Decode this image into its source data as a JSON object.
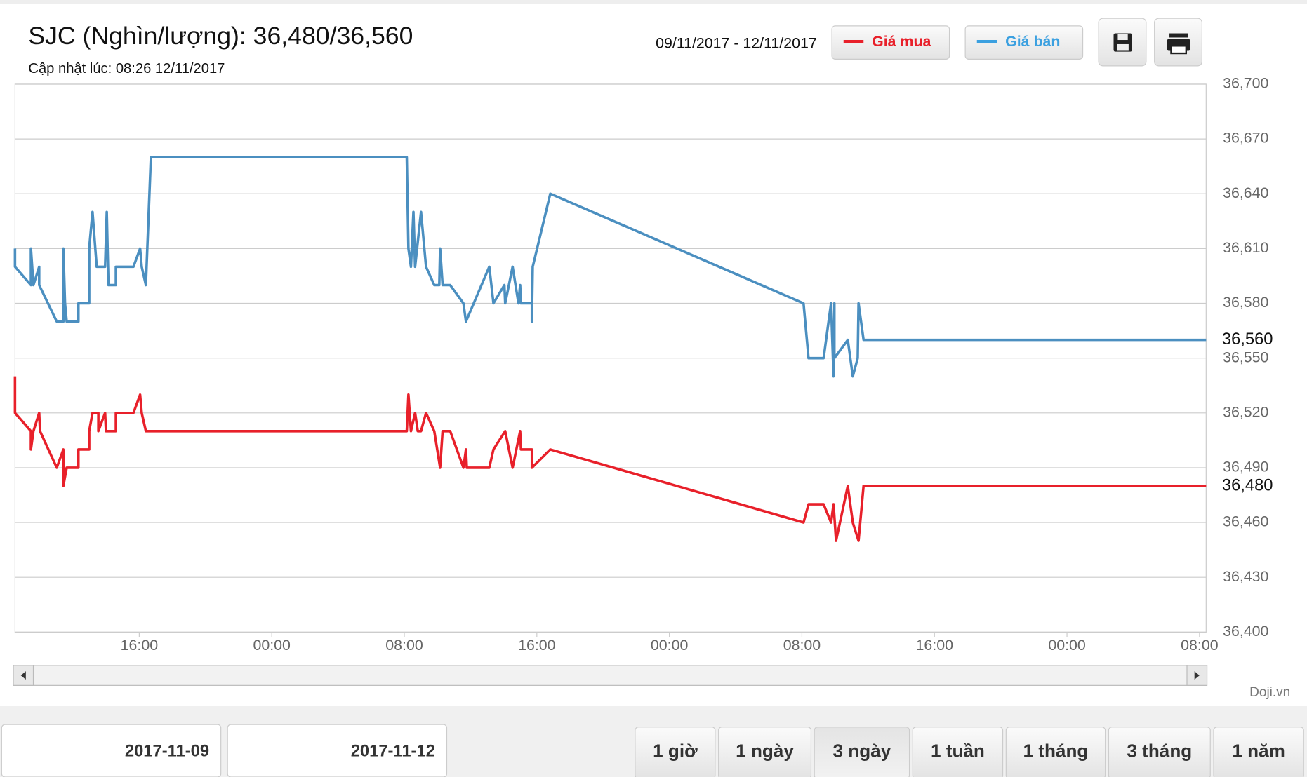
{
  "chart_data": {
    "type": "line",
    "title": "SJC (Nghìn/lượng): 36,480/36,560",
    "subtitle": "Cập nhật lúc: 08:26 12/11/2017",
    "date_range": "09/11/2017 - 12/11/2017",
    "watermark": "Doji.vn",
    "legend_position": "top-right",
    "grid": true,
    "xlim": [
      8.5,
      80.4
    ],
    "xticks": [
      {
        "value": 16,
        "label": "16:00"
      },
      {
        "value": 24,
        "label": "00:00"
      },
      {
        "value": 32,
        "label": "08:00"
      },
      {
        "value": 40,
        "label": "16:00"
      },
      {
        "value": 48,
        "label": "00:00"
      },
      {
        "value": 56,
        "label": "08:00"
      },
      {
        "value": 64,
        "label": "16:00"
      },
      {
        "value": 72,
        "label": "00:00"
      },
      {
        "value": 80,
        "label": "08:00"
      }
    ],
    "ylim": [
      36400,
      36700
    ],
    "yticks": [
      {
        "value": 36400,
        "label": "36,400"
      },
      {
        "value": 36430,
        "label": "36,430"
      },
      {
        "value": 36460,
        "label": "36,460"
      },
      {
        "value": 36490,
        "label": "36,490"
      },
      {
        "value": 36520,
        "label": "36,520"
      },
      {
        "value": 36550,
        "label": "36,550"
      },
      {
        "value": 36580,
        "label": "36,580"
      },
      {
        "value": 36610,
        "label": "36,610"
      },
      {
        "value": 36640,
        "label": "36,640"
      },
      {
        "value": 36670,
        "label": "36,670"
      },
      {
        "value": 36700,
        "label": "36,700"
      }
    ],
    "series": [
      {
        "name": "Giá mua",
        "color": "#e8202a",
        "current": {
          "value": 36480,
          "label": "36,480"
        },
        "x": [
          8.5,
          8.5,
          9.46,
          9.46,
          9.61,
          9.96,
          10.01,
          11.02,
          11.42,
          11.42,
          11.62,
          12.33,
          12.33,
          12.98,
          12.98,
          13.18,
          13.53,
          13.53,
          13.94,
          13.99,
          14.59,
          14.59,
          15.65,
          16.05,
          16.15,
          16.4,
          32.15,
          32.25,
          32.4,
          32.65,
          32.81,
          33.01,
          33.31,
          33.81,
          34.16,
          34.31,
          34.77,
          35.57,
          35.72,
          35.77,
          37.13,
          37.38,
          38.09,
          38.54,
          38.99,
          39.04,
          39.7,
          39.7,
          40.81,
          56.1,
          56.4,
          57.31,
          57.76,
          57.91,
          58.06,
          58.77,
          59.07,
          59.42,
          59.72,
          80.4
        ],
        "values": [
          36540,
          36520,
          36510,
          36500,
          36510,
          36520,
          36510,
          36490,
          36500,
          36480,
          36490,
          36490,
          36500,
          36500,
          36510,
          36520,
          36520,
          36510,
          36520,
          36510,
          36510,
          36520,
          36520,
          36530,
          36520,
          36510,
          36510,
          36530,
          36510,
          36520,
          36510,
          36510,
          36520,
          36510,
          36490,
          36510,
          36510,
          36490,
          36500,
          36490,
          36490,
          36500,
          36510,
          36490,
          36510,
          36500,
          36500,
          36490,
          36500,
          36460,
          36470,
          36470,
          36460,
          36470,
          36450,
          36480,
          36460,
          36450,
          36480,
          36480
        ]
      },
      {
        "name": "Giá bán",
        "color": "#4b8fc0",
        "current": {
          "value": 36560,
          "label": "36,560"
        },
        "x": [
          8.5,
          8.5,
          9.46,
          9.46,
          9.61,
          9.96,
          9.96,
          11.02,
          11.42,
          11.42,
          11.52,
          11.62,
          12.33,
          12.33,
          12.98,
          12.98,
          13.18,
          13.43,
          13.94,
          14.04,
          14.14,
          14.59,
          14.59,
          15.65,
          16.05,
          16.15,
          16.4,
          16.7,
          32.15,
          32.25,
          32.4,
          32.55,
          32.65,
          33.01,
          33.31,
          33.81,
          34.11,
          34.16,
          34.31,
          34.77,
          35.57,
          35.72,
          37.13,
          37.38,
          38.04,
          38.09,
          38.54,
          38.89,
          38.99,
          39.04,
          39.7,
          39.7,
          39.75,
          40.81,
          56.1,
          56.4,
          57.31,
          57.76,
          57.91,
          57.96,
          57.96,
          58.77,
          59.07,
          59.37,
          59.42,
          59.72,
          80.4
        ],
        "values": [
          36610,
          36600,
          36590,
          36610,
          36590,
          36600,
          36590,
          36570,
          36570,
          36610,
          36580,
          36570,
          36570,
          36580,
          36580,
          36610,
          36630,
          36600,
          36600,
          36630,
          36590,
          36590,
          36600,
          36600,
          36610,
          36600,
          36590,
          36660,
          36660,
          36610,
          36600,
          36630,
          36600,
          36630,
          36600,
          36590,
          36590,
          36610,
          36590,
          36590,
          36580,
          36570,
          36600,
          36580,
          36590,
          36580,
          36600,
          36580,
          36590,
          36580,
          36580,
          36570,
          36600,
          36640,
          36580,
          36550,
          36550,
          36580,
          36540,
          36580,
          36550,
          36560,
          36540,
          36550,
          36580,
          36560,
          36560
        ]
      }
    ],
    "range_inputs": [
      "2017-11-09",
      "2017-11-12"
    ],
    "range_buttons": [
      "1 giờ",
      "1 ngày",
      "3 ngày",
      "1 tuần",
      "1 tháng",
      "3 tháng",
      "1 năm"
    ],
    "selected_range": 2
  }
}
